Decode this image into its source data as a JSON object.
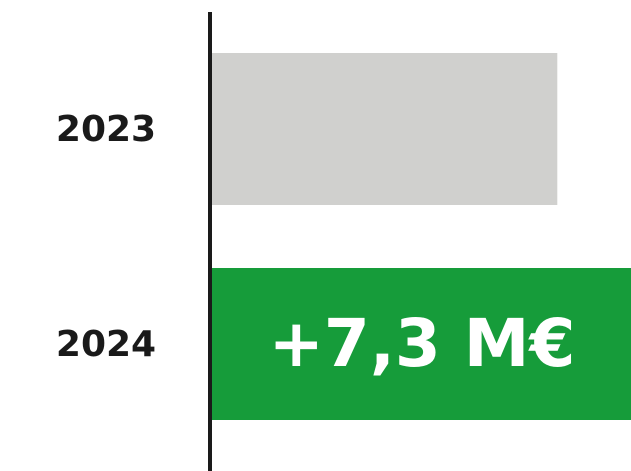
{
  "chart_data": {
    "type": "barh",
    "categories": [
      "2023",
      "2024"
    ],
    "series": [
      {
        "name": null,
        "colors": [
          "#d0d0ce",
          "#169c3a"
        ],
        "values": [
          34.2,
          41.5
        ]
      }
    ],
    "xlim": [
      0,
      41.5
    ],
    "annotations": [
      {
        "text": "+7,3 M€",
        "category": 1
      }
    ]
  }
}
